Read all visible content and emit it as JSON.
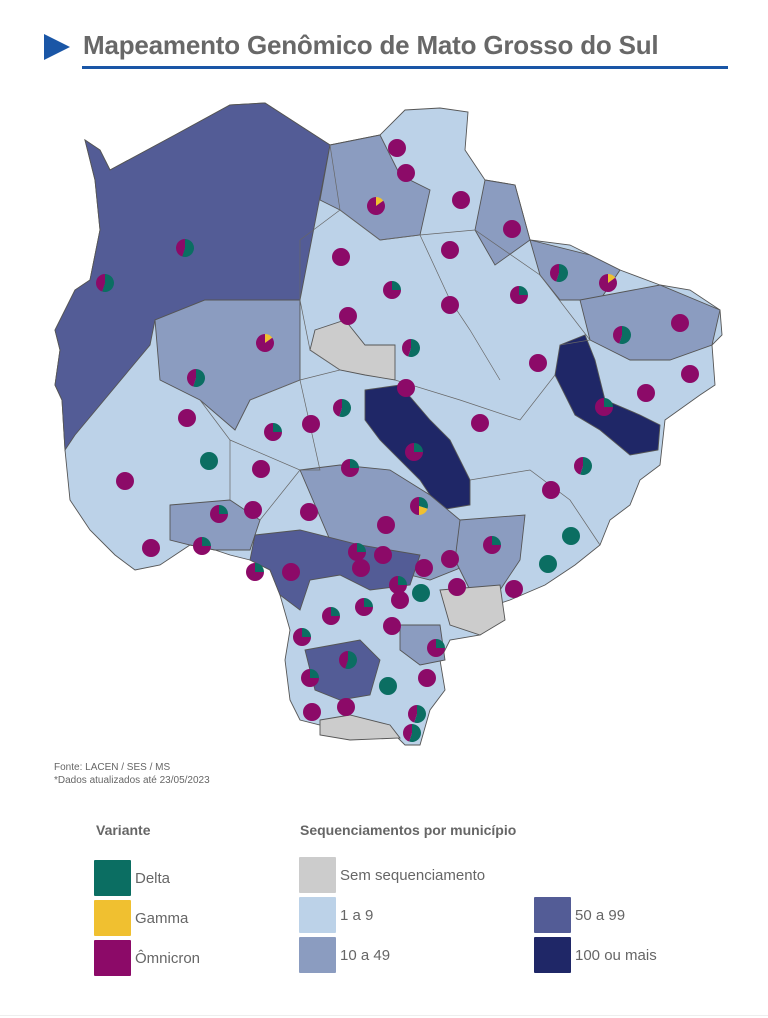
{
  "header": {
    "title": "Mapeamento Genômico de Mato Grosso do Sul"
  },
  "source": {
    "line1": "Fonte: LACEN / SES / MS",
    "line2": "*Dados atualizados até 23/05/2023"
  },
  "legend_variant": {
    "title": "Variante",
    "items": [
      {
        "label": "Delta",
        "color": "#0b6e62"
      },
      {
        "label": "Gamma",
        "color": "#f0c030"
      },
      {
        "label": "Ômnicron",
        "color": "#8c0a68"
      }
    ]
  },
  "legend_sequencing": {
    "title": "Sequenciamentos por município",
    "items": [
      {
        "label": "Sem sequenciamento",
        "color": "#cccccc"
      },
      {
        "label": "1 a 9",
        "color": "#bcd2e8"
      },
      {
        "label": "10 a 49",
        "color": "#8b9cc0"
      },
      {
        "label": "50 a 99",
        "color": "#535c96"
      },
      {
        "label": "100 ou mais",
        "color": "#1f2767"
      }
    ]
  }
}
